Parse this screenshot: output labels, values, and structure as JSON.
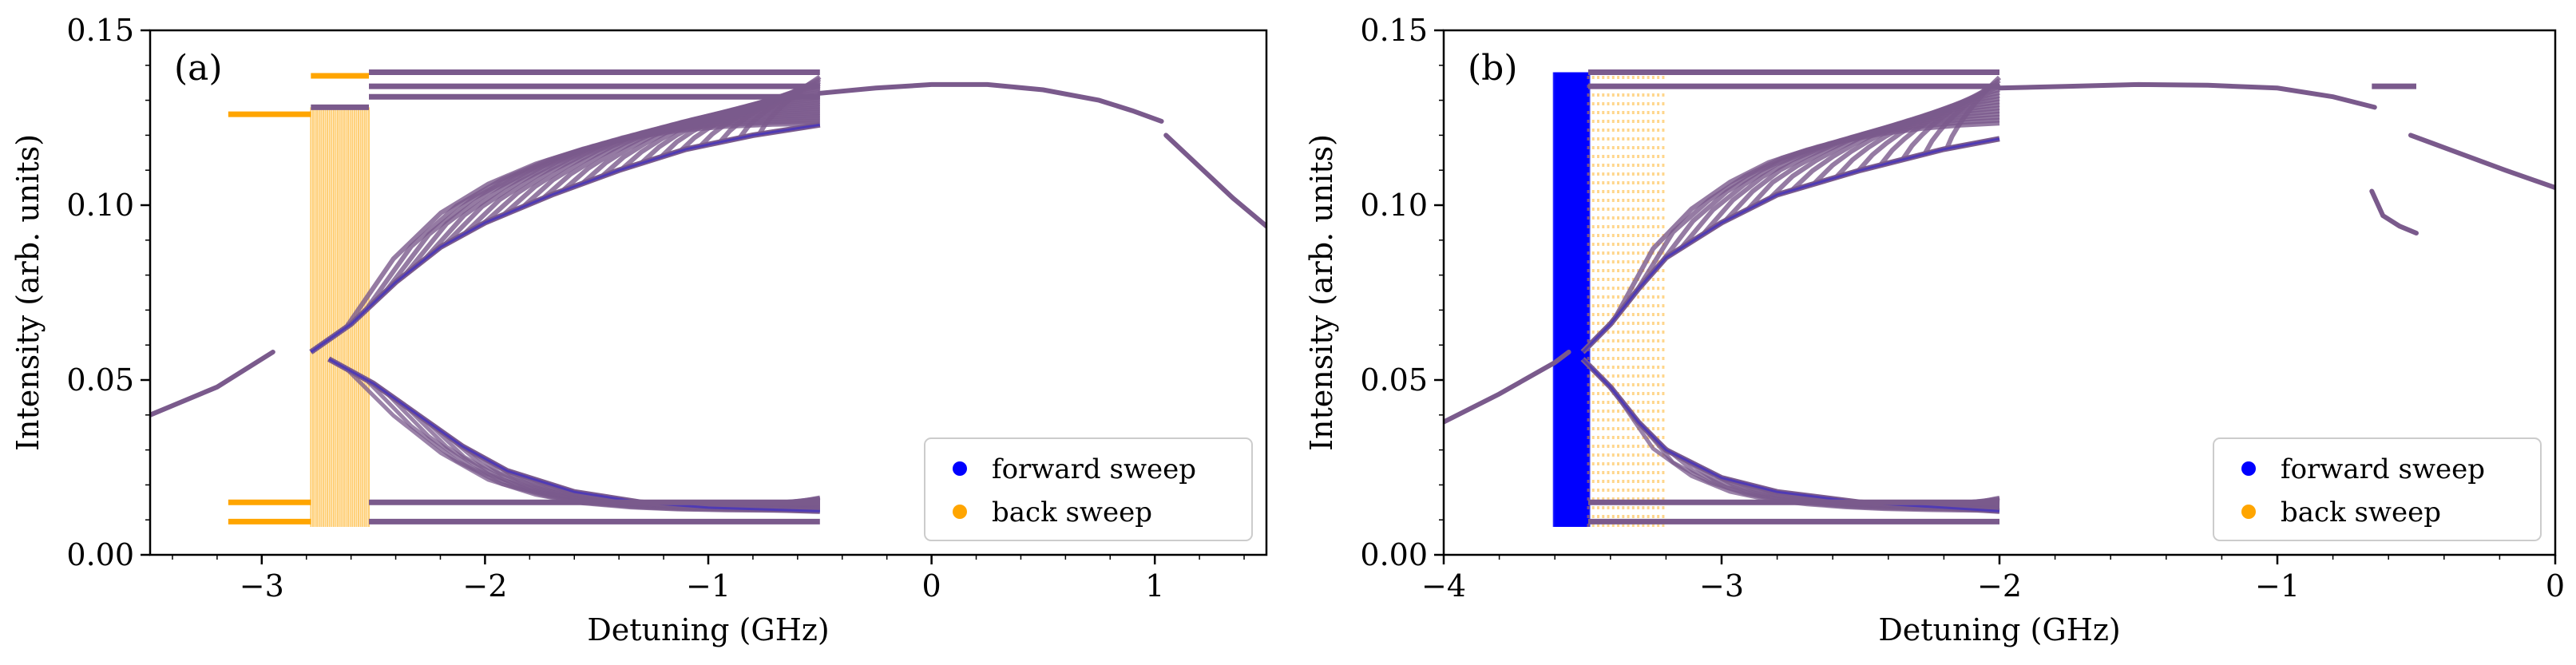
{
  "chart_data": [
    {
      "type": "scatter",
      "panel_label": "(a)",
      "xlabel": "Detuning (GHz)",
      "ylabel": "Intensity (arb. units)",
      "xlim": [
        -3.5,
        1.5
      ],
      "ylim": [
        0.0,
        0.15
      ],
      "xticks": [
        -3,
        -2,
        -1,
        0,
        1
      ],
      "xtick_labels": [
        "−3",
        "−2",
        "−1",
        "0",
        "1"
      ],
      "yticks": [
        0.0,
        0.05,
        0.1,
        0.15
      ],
      "ytick_labels": [
        "0.00",
        "0.05",
        "0.10",
        "0.15"
      ],
      "legend_loc": "lower right",
      "series": [
        {
          "name": "forward sweep",
          "color": "#0000ff"
        },
        {
          "name": "back sweep",
          "color": "#ffa500"
        }
      ],
      "overlap_color": "#7a5a8c",
      "curves": {
        "cw_low": [
          [
            -3.5,
            0.04
          ],
          [
            -3.2,
            0.048
          ],
          [
            -2.95,
            0.058
          ]
        ],
        "cw_high": [
          [
            -0.5,
            0.132
          ],
          [
            -0.25,
            0.1335
          ],
          [
            0.0,
            0.1345
          ],
          [
            0.25,
            0.1345
          ],
          [
            0.5,
            0.133
          ],
          [
            0.75,
            0.13
          ],
          [
            0.9,
            0.127
          ],
          [
            1.03,
            0.124
          ]
        ],
        "cw_tail": [
          [
            1.05,
            0.12
          ],
          [
            1.2,
            0.111
          ],
          [
            1.35,
            0.102
          ],
          [
            1.5,
            0.094
          ]
        ],
        "upper_envelope": [
          [
            -2.78,
            0.058
          ],
          [
            -2.6,
            0.066
          ],
          [
            -2.4,
            0.078
          ],
          [
            -2.2,
            0.088
          ],
          [
            -2.0,
            0.095
          ],
          [
            -1.7,
            0.103
          ],
          [
            -1.4,
            0.11
          ],
          [
            -1.1,
            0.116
          ],
          [
            -0.8,
            0.12
          ],
          [
            -0.5,
            0.123
          ]
        ],
        "lower_envelope": [
          [
            -2.7,
            0.056
          ],
          [
            -2.5,
            0.049
          ],
          [
            -2.3,
            0.04
          ],
          [
            -2.1,
            0.031
          ],
          [
            -1.9,
            0.024
          ],
          [
            -1.6,
            0.018
          ],
          [
            -1.3,
            0.015
          ],
          [
            -1.0,
            0.0135
          ],
          [
            -0.5,
            0.0125
          ]
        ],
        "chaos_band": [
          -2.78,
          -2.52
        ],
        "h_lines": [
          {
            "x": [
              -3.15,
              -2.78
            ],
            "y": 0.126,
            "c": "orange"
          },
          {
            "x": [
              -2.78,
              -2.52
            ],
            "y": 0.128,
            "c": "mixed"
          },
          {
            "x": [
              -2.78,
              -2.52
            ],
            "y": 0.137,
            "c": "orange"
          },
          {
            "x": [
              -2.52,
              -0.5
            ],
            "y": 0.138,
            "c": "mix"
          },
          {
            "x": [
              -2.52,
              -0.5
            ],
            "y": 0.134,
            "c": "mix"
          },
          {
            "x": [
              -2.52,
              -0.5
            ],
            "y": 0.131,
            "c": "mix"
          },
          {
            "x": [
              -3.15,
              -2.78
            ],
            "y": 0.015,
            "c": "orange"
          },
          {
            "x": [
              -3.15,
              -2.78
            ],
            "y": 0.0095,
            "c": "orange"
          },
          {
            "x": [
              -2.52,
              -0.5
            ],
            "y": 0.015,
            "c": "mix"
          },
          {
            "x": [
              -2.52,
              -0.5
            ],
            "y": 0.0095,
            "c": "mix"
          }
        ]
      }
    },
    {
      "type": "scatter",
      "panel_label": "(b)",
      "xlabel": "Detuning (GHz)",
      "ylabel": "Intensity (arb. units)",
      "xlim": [
        -4.0,
        0.0
      ],
      "ylim": [
        0.0,
        0.15
      ],
      "xticks": [
        -4,
        -3,
        -2,
        -1,
        0
      ],
      "xtick_labels": [
        "−4",
        "−3",
        "−2",
        "−1",
        "0"
      ],
      "yticks": [
        0.0,
        0.05,
        0.1,
        0.15
      ],
      "ytick_labels": [
        "0.00",
        "0.05",
        "0.10",
        "0.15"
      ],
      "legend_loc": "lower right",
      "series": [
        {
          "name": "forward sweep",
          "color": "#0000ff"
        },
        {
          "name": "back sweep",
          "color": "#ffa500"
        }
      ],
      "overlap_color": "#7a5a8c",
      "curves": {
        "cw_low": [
          [
            -4.0,
            0.038
          ],
          [
            -3.8,
            0.046
          ],
          [
            -3.6,
            0.055
          ],
          [
            -3.55,
            0.058
          ]
        ],
        "cw_high": [
          [
            -2.0,
            0.1335
          ],
          [
            -1.75,
            0.134
          ],
          [
            -1.5,
            0.1345
          ],
          [
            -1.25,
            0.1343
          ],
          [
            -1.0,
            0.1335
          ],
          [
            -0.8,
            0.131
          ],
          [
            -0.65,
            0.128
          ]
        ],
        "cw_tail": [
          [
            -0.52,
            0.12
          ],
          [
            -0.35,
            0.115
          ],
          [
            -0.18,
            0.11
          ],
          [
            0.0,
            0.105
          ]
        ],
        "upper_envelope": [
          [
            -3.5,
            0.058
          ],
          [
            -3.4,
            0.066
          ],
          [
            -3.3,
            0.076
          ],
          [
            -3.2,
            0.085
          ],
          [
            -3.0,
            0.095
          ],
          [
            -2.8,
            0.103
          ],
          [
            -2.5,
            0.11
          ],
          [
            -2.2,
            0.116
          ],
          [
            -2.0,
            0.119
          ]
        ],
        "lower_envelope": [
          [
            -3.5,
            0.056
          ],
          [
            -3.4,
            0.048
          ],
          [
            -3.3,
            0.038
          ],
          [
            -3.2,
            0.03
          ],
          [
            -3.0,
            0.022
          ],
          [
            -2.8,
            0.018
          ],
          [
            -2.5,
            0.015
          ],
          [
            -2.2,
            0.0135
          ],
          [
            -2.0,
            0.0125
          ]
        ],
        "chaos_band": [
          -3.6,
          -3.48
        ],
        "h_lines": [
          {
            "x": [
              -3.48,
              -2.0
            ],
            "y": 0.138,
            "c": "mix"
          },
          {
            "x": [
              -3.48,
              -2.0
            ],
            "y": 0.134,
            "c": "mix"
          },
          {
            "x": [
              -3.48,
              -2.0
            ],
            "y": 0.015,
            "c": "mix"
          },
          {
            "x": [
              -3.48,
              -2.0
            ],
            "y": 0.0095,
            "c": "mix"
          },
          {
            "x": [
              -0.66,
              -0.5
            ],
            "y": 0.134,
            "c": "mix"
          }
        ],
        "side_branch": [
          [
            -0.66,
            0.104
          ],
          [
            -0.62,
            0.097
          ],
          [
            -0.56,
            0.094
          ],
          [
            -0.5,
            0.092
          ]
        ]
      }
    }
  ]
}
